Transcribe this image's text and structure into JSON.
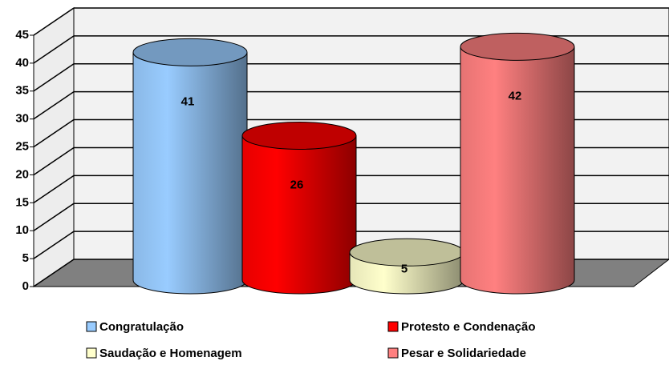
{
  "chart_data": {
    "type": "bar",
    "categories": [
      "Congratulação",
      "Protesto e Condenação",
      "Saudação e Homenagem",
      "Pesar e Solidariedade"
    ],
    "values": [
      41,
      26,
      5,
      42
    ],
    "colors": [
      "#99ccff",
      "#ff0000",
      "#ffffcc",
      "#ff8080"
    ],
    "ylim": [
      0,
      45
    ],
    "yticks": [
      0,
      5,
      10,
      15,
      20,
      25,
      30,
      35,
      40,
      45
    ],
    "grid": true
  }
}
